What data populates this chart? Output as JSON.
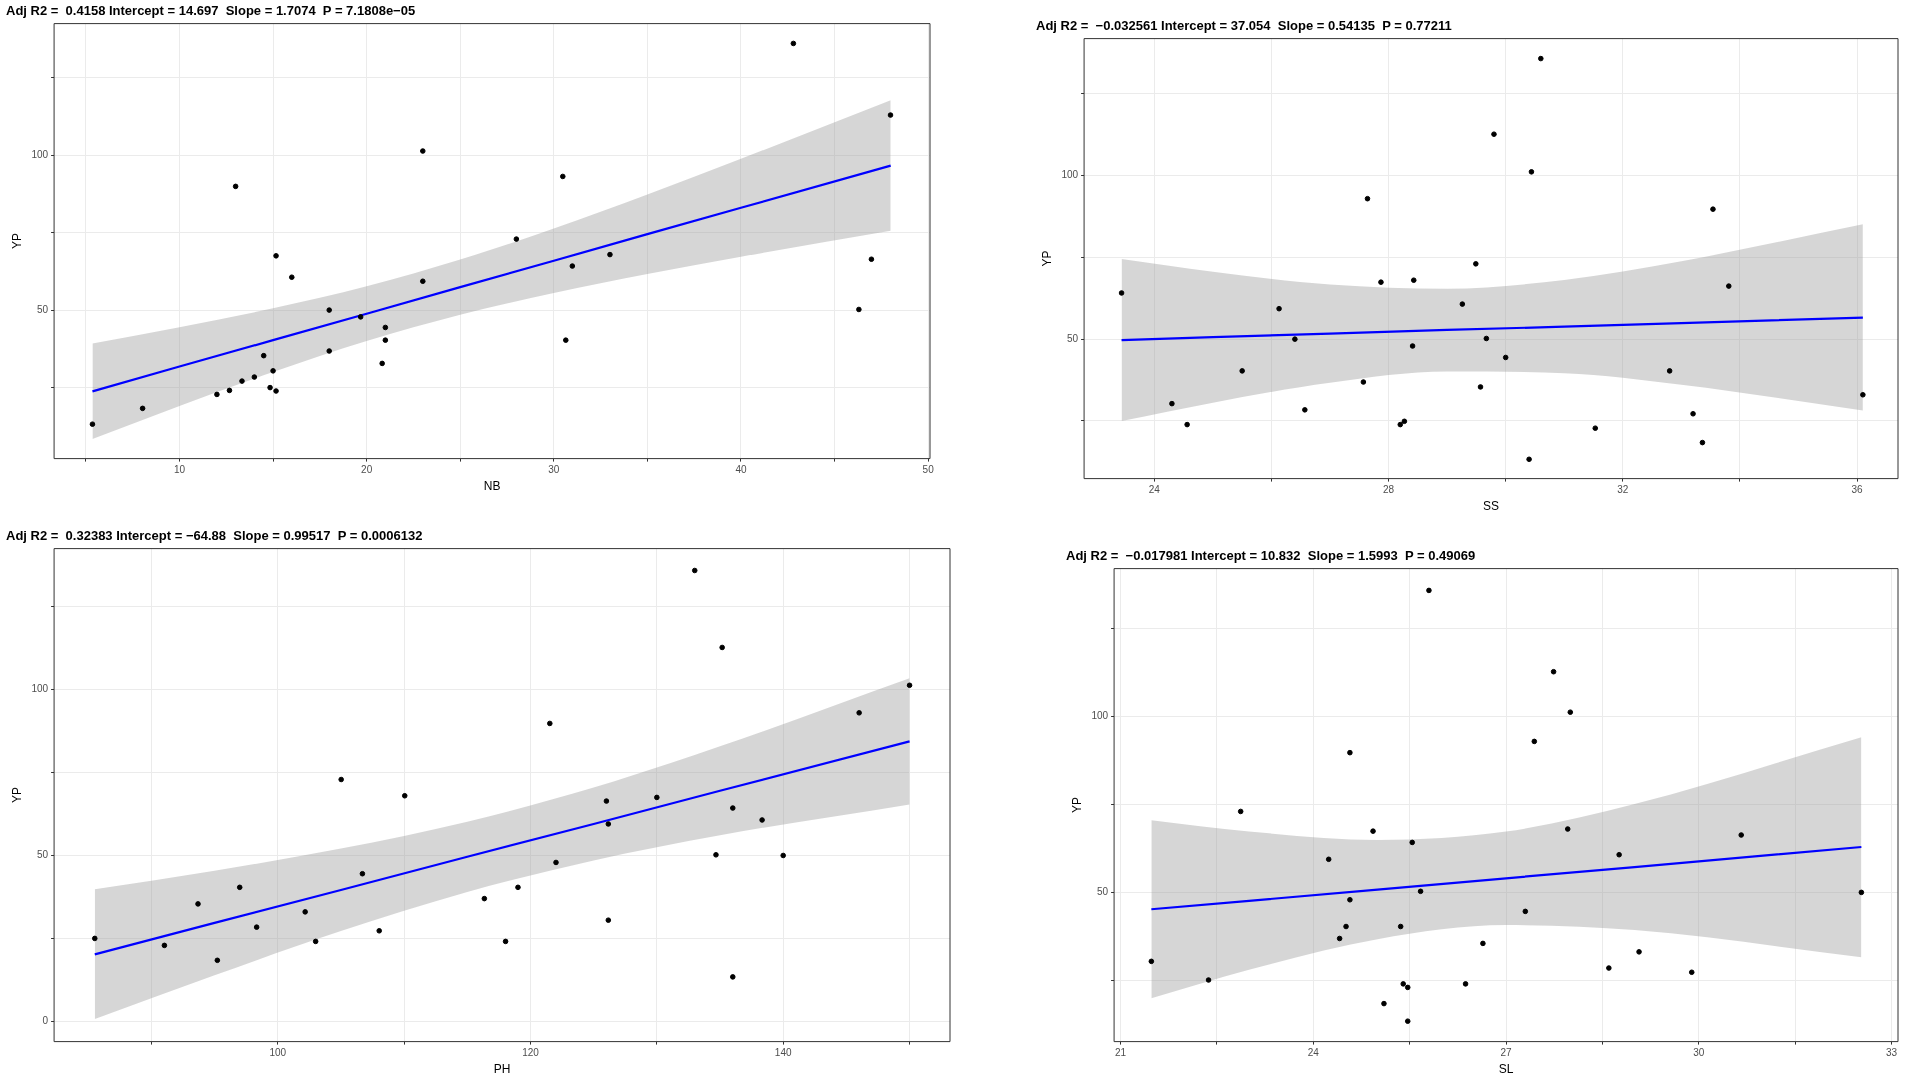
{
  "chart_data": [
    {
      "type": "scatter",
      "title": "Adj R2 =  0.4158 Intercept = 14.697  Slope = 1.7074  P = 7.1808e−05",
      "xlabel": "NB",
      "ylabel": "YP",
      "grid": true,
      "marker": "circle",
      "xlim": [
        3.3,
        50.1
      ],
      "xticks": [
        {
          "value": 5,
          "label": null
        },
        10,
        {
          "value": 15,
          "label": null
        },
        20,
        {
          "value": 25,
          "label": null
        },
        30,
        {
          "value": 35,
          "label": null
        },
        40,
        {
          "value": 45,
          "label": null
        },
        50
      ],
      "ylim": [
        2.1,
        142.4
      ],
      "yticks": [
        {
          "value": 25,
          "label": null
        },
        50,
        {
          "value": 75,
          "label": null
        },
        100,
        {
          "value": 125,
          "label": null
        }
      ],
      "series": [
        {
          "type": "scatter",
          "color": "#000000",
          "x": [
            5.35,
            8.03,
            12.0,
            12.67,
            13.34,
            14.0,
            14.5,
            14.84,
            15.0,
            15.16,
            13.0,
            15.16,
            16.0,
            18.0,
            18.0,
            19.68,
            21.0,
            21.0,
            20.83,
            23.0,
            23.0,
            28.0,
            30.48,
            30.64,
            30.99,
            33.0,
            42.8,
            46.3,
            46.97,
            47.99
          ],
          "values": [
            13.2,
            18.3,
            22.8,
            24.1,
            27.1,
            28.4,
            35.3,
            25.0,
            30.4,
            23.9,
            89.9,
            67.5,
            60.6,
            50.0,
            36.8,
            47.8,
            44.4,
            40.3,
            32.8,
            101.3,
            59.3,
            72.9,
            93.1,
            40.3,
            64.2,
            67.9,
            136.0,
            50.2,
            66.4,
            112.9
          ]
        },
        {
          "type": "line",
          "color": "#0000ff",
          "line_style": "solid",
          "marker": "none",
          "x": [
            5.35,
            10,
            15,
            20,
            25,
            30,
            35,
            40,
            48
          ],
          "values": [
            23.8,
            31.8,
            40.3,
            48.8,
            57.4,
            65.9,
            74.5,
            83.0,
            96.6
          ],
          "lower": [
            8.4,
            19.1,
            30.0,
            40.0,
            48.5,
            55.5,
            61.6,
            67.2,
            75.6
          ],
          "upper": [
            39.2,
            44.5,
            50.6,
            57.7,
            66.3,
            76.3,
            87.3,
            98.8,
            117.7
          ]
        }
      ]
    },
    {
      "type": "scatter",
      "title": "Adj R2 =  −0.032561 Intercept = 37.054  Slope = 0.54135  P = 0.77211",
      "xlabel": "SS",
      "ylabel": "YP",
      "grid": true,
      "marker": "circle",
      "xlim": [
        22.8,
        36.7
      ],
      "xticks": [
        24,
        {
          "value": 26,
          "label": null
        },
        28,
        {
          "value": 30,
          "label": null
        },
        32,
        {
          "value": 34,
          "label": null
        },
        36
      ],
      "ylim": [
        7.4,
        141.8
      ],
      "yticks": [
        {
          "value": 25,
          "label": null
        },
        50,
        {
          "value": 75,
          "label": null
        },
        100,
        {
          "value": 125,
          "label": null
        }
      ],
      "series": [
        {
          "type": "scatter",
          "color": "#000000",
          "x": [
            23.44,
            24.3,
            24.56,
            25.5,
            26.13,
            26.4,
            26.57,
            27.57,
            27.64,
            27.87,
            28.2,
            28.27,
            28.41,
            28.43,
            29.26,
            29.49,
            29.57,
            29.67,
            29.8,
            30.0,
            30.4,
            30.44,
            30.6,
            31.53,
            32.8,
            33.2,
            33.36,
            33.54,
            33.81,
            36.1
          ],
          "values": [
            64.1,
            30.3,
            23.9,
            40.3,
            59.3,
            50.0,
            28.4,
            36.9,
            92.9,
            67.4,
            23.9,
            24.9,
            47.9,
            68.0,
            60.7,
            73.0,
            35.4,
            50.2,
            112.6,
            44.4,
            13.3,
            101.1,
            135.7,
            22.8,
            40.3,
            27.2,
            18.4,
            89.7,
            66.2,
            33.0
          ]
        },
        {
          "type": "line",
          "color": "#0000ff",
          "line_style": "solid",
          "marker": "none",
          "x": [
            23.44,
            25,
            27,
            29,
            31,
            33,
            36.1
          ],
          "values": [
            49.7,
            50.6,
            51.7,
            52.8,
            53.8,
            54.9,
            56.6
          ],
          "lower": [
            25.0,
            30.6,
            36.7,
            40.1,
            39.6,
            36.1,
            28.2
          ],
          "upper": [
            74.5,
            70.6,
            66.7,
            65.4,
            68.1,
            73.8,
            85.1
          ]
        }
      ]
    },
    {
      "type": "scatter",
      "title": "Adj R2 =  0.32383 Intercept = −64.88  Slope = 0.99517  P = 0.0006132",
      "xlabel": "PH",
      "ylabel": "YP",
      "grid": true,
      "marker": "circle",
      "xlim": [
        82.3,
        153.2
      ],
      "xticks": [
        {
          "value": 90,
          "label": null
        },
        100,
        {
          "value": 110,
          "label": null
        },
        120,
        {
          "value": 130,
          "label": null
        },
        140,
        {
          "value": 150,
          "label": null
        }
      ],
      "ylim": [
        -6.1,
        142.5
      ],
      "yticks": [
        0,
        {
          "value": 25,
          "label": null
        },
        50,
        {
          "value": 75,
          "label": null
        },
        100,
        {
          "value": 125,
          "label": null
        }
      ],
      "series": [
        {
          "type": "scatter",
          "color": "#000000",
          "x": [
            85.52,
            91.03,
            93.69,
            95.22,
            96.99,
            98.33,
            102.17,
            103.0,
            105.02,
            106.7,
            108.03,
            110.05,
            116.35,
            118.03,
            119.01,
            121.53,
            122.02,
            126.01,
            126.16,
            126.16,
            130.0,
            133.0,
            134.68,
            135.17,
            136.01,
            136.01,
            138.33,
            140.0,
            146.01,
            150.0
          ],
          "values": [
            25.0,
            22.9,
            35.4,
            18.4,
            40.4,
            28.4,
            33.0,
            24.1,
            72.9,
            44.5,
            27.3,
            68.0,
            37.0,
            24.1,
            40.4,
            89.8,
            47.9,
            66.4,
            59.5,
            30.5,
            67.5,
            135.9,
            50.2,
            112.7,
            64.3,
            13.4,
            60.7,
            50.0,
            93.0,
            101.3
          ]
        },
        {
          "type": "line",
          "color": "#0000ff",
          "line_style": "solid",
          "marker": "none",
          "x": [
            85.52,
            95,
            105,
            115,
            125,
            135,
            150
          ],
          "values": [
            20.2,
            29.7,
            39.6,
            49.6,
            59.5,
            69.5,
            84.4
          ],
          "lower": [
            0.7,
            13.9,
            27.2,
            39.0,
            48.5,
            56.1,
            65.4
          ],
          "upper": [
            39.8,
            45.4,
            52.1,
            60.2,
            70.5,
            82.9,
            103.4
          ]
        }
      ]
    },
    {
      "type": "scatter",
      "title": "Adj R2 =  −0.017981 Intercept = 10.832  Slope = 1.5993  P = 0.49069",
      "xlabel": "SL",
      "ylabel": "YP",
      "grid": true,
      "marker": "circle",
      "xlim": [
        20.9,
        33.1
      ],
      "xticks": [
        21,
        {
          "value": 22.5,
          "label": null
        },
        24,
        {
          "value": 25.5,
          "label": null
        },
        27,
        {
          "value": 28.5,
          "label": null
        },
        30,
        {
          "value": 31.5,
          "label": null
        },
        33
      ],
      "ylim": [
        7.6,
        142.0
      ],
      "yticks": [
        {
          "value": 25,
          "label": null
        },
        50,
        {
          "value": 75,
          "label": null
        },
        100,
        {
          "value": 125,
          "label": null
        }
      ],
      "series": [
        {
          "type": "scatter",
          "color": "#000000",
          "x": [
            21.48,
            22.37,
            22.87,
            24.24,
            24.41,
            24.51,
            24.57,
            24.57,
            24.93,
            25.1,
            25.36,
            25.4,
            25.47,
            25.47,
            25.54,
            25.67,
            25.8,
            26.37,
            26.64,
            27.3,
            27.44,
            27.74,
            27.96,
            28.0,
            28.6,
            28.76,
            29.07,
            29.89,
            30.66,
            32.53
          ],
          "values": [
            30.4,
            25.1,
            73.0,
            59.4,
            36.9,
            40.3,
            89.7,
            47.9,
            67.4,
            18.4,
            40.3,
            24.0,
            23.0,
            13.4,
            64.2,
            50.3,
            135.8,
            24.0,
            35.5,
            44.6,
            92.9,
            112.7,
            68.0,
            101.2,
            28.5,
            60.7,
            33.1,
            27.3,
            66.3,
            50.0
          ]
        },
        {
          "type": "line",
          "color": "#0000ff",
          "line_style": "solid",
          "marker": "none",
          "x": [
            21.48,
            23,
            25,
            27,
            29,
            32.53
          ],
          "values": [
            45.2,
            47.6,
            50.8,
            54.0,
            57.2,
            62.9
          ],
          "lower": [
            19.9,
            28.0,
            36.7,
            40.7,
            39.3,
            31.6
          ],
          "upper": [
            70.5,
            67.3,
            64.9,
            67.3,
            75.1,
            94.1
          ]
        }
      ]
    }
  ]
}
